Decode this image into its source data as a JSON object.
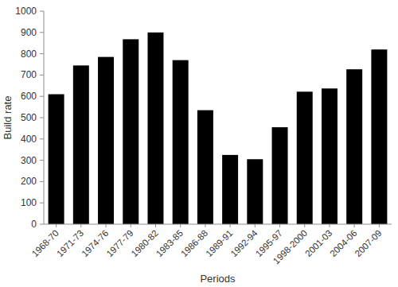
{
  "chart_data": {
    "type": "bar",
    "x_label": "Periods",
    "y_label": "Build rate",
    "categories": [
      "1968-70",
      "1971-73",
      "1974-76",
      "1977-79",
      "1980-82",
      "1983-85",
      "1986-88",
      "1989-91",
      "1992-94",
      "1995-97",
      "1998-2000",
      "2001-03",
      "2004-06",
      "2007-09"
    ],
    "values": [
      610,
      745,
      785,
      868,
      900,
      770,
      535,
      325,
      305,
      455,
      622,
      637,
      727,
      820
    ],
    "color": "#000000",
    "ylim": [
      0,
      1000
    ],
    "yticks": [
      0,
      100,
      200,
      300,
      400,
      500,
      600,
      700,
      800,
      900,
      1000
    ],
    "grid": false
  }
}
